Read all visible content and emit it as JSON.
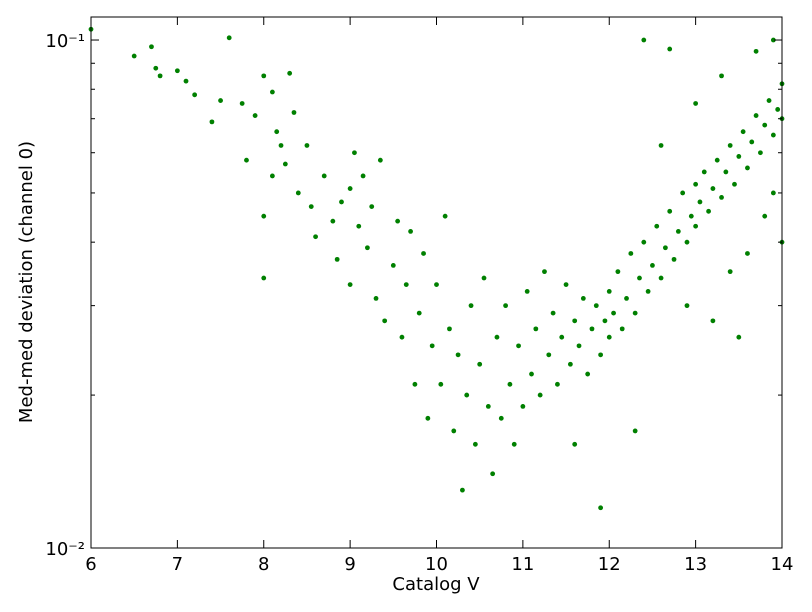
{
  "chart_data": {
    "type": "scatter",
    "x_label": "Catalog V",
    "y_label": "Med-med deviation (channel 0)",
    "color": "#008000",
    "log_y": true,
    "xlim": [
      6,
      14
    ],
    "ylim": [
      0.01,
      0.111
    ],
    "xticks": [
      6,
      7,
      8,
      9,
      10,
      11,
      12,
      13,
      14
    ],
    "yticks": [
      {
        "value": 0.01,
        "label": "10⁻²"
      },
      {
        "value": 0.1,
        "label": "10⁻¹"
      }
    ],
    "yminorticks": [
      0.02,
      0.03,
      0.04,
      0.05,
      0.06,
      0.07,
      0.08,
      0.09
    ],
    "x": [
      6.0,
      6.5,
      6.7,
      6.75,
      6.8,
      7.0,
      7.1,
      7.2,
      7.4,
      7.5,
      7.6,
      7.75,
      7.8,
      7.9,
      8.0,
      8.1,
      8.15,
      8.2,
      8.3,
      8.35,
      8.0,
      8.0,
      8.1,
      8.25,
      8.4,
      8.5,
      8.55,
      8.6,
      8.7,
      8.8,
      8.85,
      8.9,
      9.0,
      9.0,
      9.05,
      9.1,
      9.15,
      9.2,
      9.25,
      9.3,
      9.35,
      9.4,
      9.5,
      9.55,
      9.6,
      9.65,
      9.7,
      9.75,
      9.8,
      9.85,
      9.9,
      9.95,
      10.0,
      10.05,
      10.1,
      10.15,
      10.2,
      10.25,
      10.3,
      10.35,
      10.4,
      10.45,
      10.5,
      10.55,
      10.6,
      10.65,
      10.7,
      10.75,
      10.8,
      10.85,
      10.9,
      10.95,
      11.0,
      11.05,
      11.1,
      11.15,
      11.2,
      11.25,
      11.3,
      11.35,
      11.4,
      11.45,
      11.5,
      11.55,
      11.6,
      11.65,
      11.7,
      11.75,
      11.8,
      11.85,
      11.9,
      11.95,
      12.0,
      12.0,
      12.05,
      12.1,
      12.15,
      12.2,
      12.25,
      12.3,
      12.35,
      12.4,
      12.45,
      12.5,
      12.55,
      12.6,
      12.65,
      12.7,
      12.75,
      12.8,
      12.85,
      12.9,
      12.95,
      13.0,
      13.0,
      13.05,
      13.1,
      13.15,
      13.2,
      13.25,
      13.3,
      13.35,
      13.4,
      13.45,
      13.5,
      13.55,
      13.6,
      13.65,
      13.7,
      13.75,
      13.8,
      13.85,
      13.9,
      13.95,
      14.0,
      14.0,
      13.7,
      13.9,
      13.3,
      13.0,
      12.6,
      12.7,
      12.4,
      13.2,
      13.5,
      11.9,
      12.3,
      11.6,
      13.4,
      12.9,
      13.8,
      14.0,
      13.9,
      13.6
    ],
    "values": [
      0.105,
      0.093,
      0.097,
      0.088,
      0.085,
      0.087,
      0.083,
      0.078,
      0.069,
      0.076,
      0.101,
      0.075,
      0.058,
      0.071,
      0.085,
      0.079,
      0.066,
      0.062,
      0.086,
      0.072,
      0.034,
      0.045,
      0.054,
      0.057,
      0.05,
      0.062,
      0.047,
      0.041,
      0.054,
      0.044,
      0.037,
      0.048,
      0.051,
      0.033,
      0.06,
      0.043,
      0.054,
      0.039,
      0.047,
      0.031,
      0.058,
      0.028,
      0.036,
      0.044,
      0.026,
      0.033,
      0.042,
      0.021,
      0.029,
      0.038,
      0.018,
      0.025,
      0.033,
      0.021,
      0.045,
      0.027,
      0.017,
      0.024,
      0.013,
      0.02,
      0.03,
      0.016,
      0.023,
      0.034,
      0.019,
      0.014,
      0.026,
      0.018,
      0.03,
      0.021,
      0.016,
      0.025,
      0.019,
      0.032,
      0.022,
      0.027,
      0.02,
      0.035,
      0.024,
      0.029,
      0.021,
      0.026,
      0.033,
      0.023,
      0.028,
      0.025,
      0.031,
      0.022,
      0.027,
      0.03,
      0.024,
      0.028,
      0.032,
      0.026,
      0.029,
      0.035,
      0.027,
      0.031,
      0.038,
      0.029,
      0.034,
      0.04,
      0.032,
      0.036,
      0.043,
      0.034,
      0.039,
      0.046,
      0.037,
      0.042,
      0.05,
      0.04,
      0.045,
      0.052,
      0.043,
      0.048,
      0.055,
      0.046,
      0.051,
      0.058,
      0.049,
      0.055,
      0.062,
      0.052,
      0.059,
      0.066,
      0.056,
      0.063,
      0.071,
      0.06,
      0.068,
      0.076,
      0.065,
      0.073,
      0.082,
      0.07,
      0.095,
      0.1,
      0.085,
      0.075,
      0.062,
      0.096,
      0.1,
      0.028,
      0.026,
      0.012,
      0.017,
      0.016,
      0.035,
      0.03,
      0.045,
      0.04,
      0.05,
      0.038
    ]
  }
}
